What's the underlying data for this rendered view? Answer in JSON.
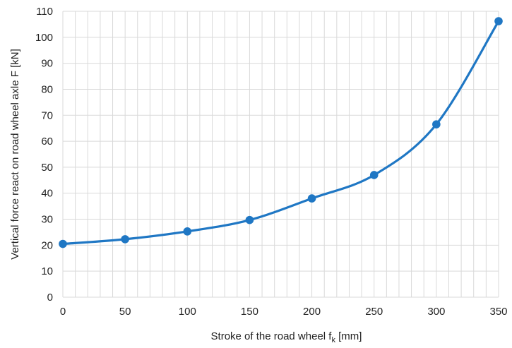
{
  "chart_data": {
    "type": "line",
    "title": "",
    "xlabel": "Stroke of the road wheel",
    "xlabel_symbol": "f",
    "xlabel_subscript": "k",
    "xlabel_unit": "[mm]",
    "ylabel": "Vertical force react on road wheel axle F [kN]",
    "xlim": [
      0,
      350
    ],
    "ylim": [
      0,
      110
    ],
    "x_ticks": [
      0,
      50,
      100,
      150,
      200,
      250,
      300,
      350
    ],
    "y_ticks": [
      0,
      10,
      20,
      30,
      40,
      50,
      60,
      70,
      80,
      90,
      100,
      110
    ],
    "x_minor_step": 10,
    "grid": true,
    "legend": "none",
    "series": [
      {
        "color": "#1f77c4",
        "x": [
          0,
          50,
          100,
          150,
          200,
          250,
          300,
          350
        ],
        "y": [
          20.5,
          22.3,
          25.3,
          29.7,
          38.0,
          47.0,
          66.5,
          106.2
        ]
      }
    ]
  }
}
